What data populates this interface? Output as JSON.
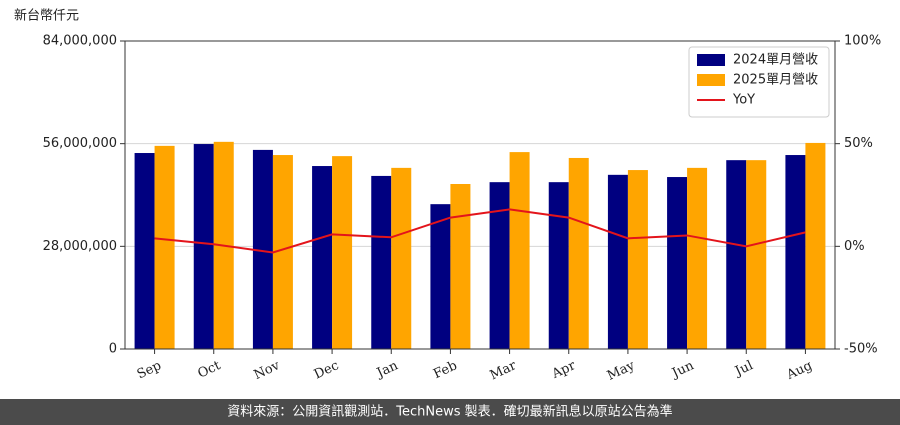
{
  "chart_data": {
    "type": "bar_line",
    "y_label": "新台幣仟元",
    "categories": [
      "Sep",
      "Oct",
      "Nov",
      "Dec",
      "Jan",
      "Feb",
      "Mar",
      "Apr",
      "May",
      "Jun",
      "Jul",
      "Aug"
    ],
    "series": [
      {
        "name": "2024單月營收",
        "type": "bar",
        "color": "#000080",
        "values": [
          53450000,
          55900000,
          54300000,
          49900000,
          47200000,
          39500000,
          45500000,
          45500000,
          47500000,
          46900000,
          51500000,
          52900000
        ]
      },
      {
        "name": "2025單月營收",
        "type": "bar",
        "color": "#ffa500",
        "values": [
          55400000,
          56500000,
          52900000,
          52600000,
          49400000,
          45000000,
          53700000,
          52100000,
          48800000,
          49400000,
          51500000,
          56200000
        ]
      },
      {
        "name": "YoY",
        "type": "line",
        "axis": "y2",
        "color": "#e3141b",
        "values": [
          3.9,
          1.0,
          -3.0,
          5.8,
          4.4,
          14.0,
          18.0,
          14.0,
          3.9,
          5.3,
          0.0,
          6.8
        ]
      }
    ],
    "ylim": [
      0,
      84000000
    ],
    "yticks": [
      0,
      {
        "value": 28000000,
        "label": "28,000,000"
      },
      {
        "value": 56000000,
        "label": "56,000,000"
      },
      {
        "value": 84000000,
        "label": "84,000,000"
      }
    ],
    "y2lim": [
      -50,
      100
    ],
    "y2ticks": [
      {
        "value": -50,
        "label": "-50%"
      },
      {
        "value": 0,
        "label": "0%"
      },
      {
        "value": 50,
        "label": "50%"
      },
      {
        "value": 100,
        "label": "100%"
      }
    ],
    "grid": true,
    "legend": "upper right",
    "footer": "資料來源：公開資訊觀測站．TechNews 製表．確切最新訊息以原站公告為準"
  }
}
